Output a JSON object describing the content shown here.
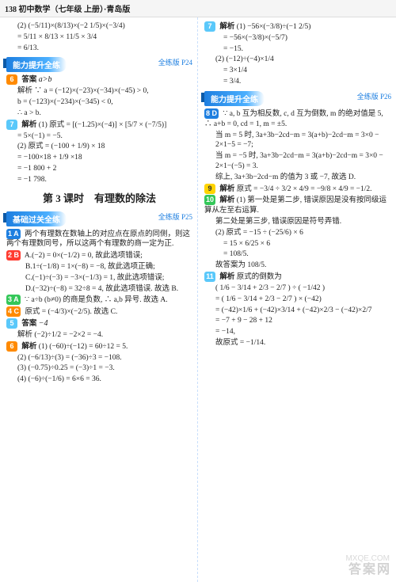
{
  "header": "138 初中数学（七年级 上册）·青岛版",
  "left": {
    "topEq": [
      "(2)  (−5/11)×(8/13)×(−2 1/5)×(−3/4)",
      "= 5/11 × 8/13 × 11/5 × 3/4",
      "= 6/13."
    ],
    "banner1": "能力提升全练",
    "pageref1": "全练版 P24",
    "q6": {
      "num": "6",
      "color": "orange",
      "label": "答案",
      "text": "a>b"
    },
    "q6explain": [
      "解析  ∵ a = (−12)×(−23)×(−34)×(−45) > 0,",
      "b = (−123)×(−234)×(−345) < 0,",
      "∴ a > b."
    ],
    "q7": {
      "num": "7",
      "color": "teal",
      "label": "解析"
    },
    "q7lines": [
      "(1) 原式 = [(−1.25)×(−4)] × [5/7 × (−7/5)]",
      "= 5×(−1) = −5.",
      "(2) 原式 = (−100 + 1/9) × 18",
      "= −100×18 + 1/9 ×18",
      "= −1 800 + 2",
      "= −1 798."
    ],
    "subtitle": "第 3 课时　有理数的除法",
    "banner2": "基础过关全练",
    "pageref2": "全练版 P25",
    "q1": {
      "num": "1 A",
      "color": "blue"
    },
    "q1text": "两个有理数在数轴上的对应点在原点的同侧，则这两个有理数同号，所以这两个有理数的商一定为正.",
    "q2": {
      "num": "2 B",
      "color": "red"
    },
    "q2lines": [
      "A.(−2) = 0×(−1/2) = 0, 故此选项错误;",
      "B.1÷(−1/8) = 1×(−8) = −8, 故此选项正确;",
      "C.(−1)÷(−3) = −3×(−1/3) = 1, 故此选项错误;",
      "D.(−32)÷(−8) = 32÷8 = 4, 故此选项错误. 故选 B."
    ],
    "q3": {
      "num": "3 A",
      "color": "green",
      "text": "∵ a÷b (b≠0) 的商是负数, ∴ a,b 异号. 故选 A."
    },
    "q4": {
      "num": "4 C",
      "color": "orange",
      "text": "原式 = (−4/3)×(−2/5). 故选 C."
    },
    "q5": {
      "num": "5",
      "color": "teal",
      "label": "答案",
      "text": "−4"
    },
    "q5explain": "解析  (−2)÷1/2 = −2×2 = −4.",
    "q6b": {
      "num": "6",
      "color": "orange",
      "label": "解析"
    },
    "q6blines": [
      "(1) (−60)÷(−12) = 60÷12 = 5.",
      "(2) (−6/13)÷(3) = (−36)÷3 = −108.",
      "(3) (−0.75)÷0.25 = (−3)÷1 = −3.",
      "(4) (−6)÷(−1/6) = 6×6 = 36."
    ]
  },
  "right": {
    "q7": {
      "num": "7",
      "color": "teal",
      "label": "解析"
    },
    "q7lines": [
      "(1) −56×(−3/8)÷(−1 2/5)",
      "= −56×(−3/8)×(−5/7)",
      "= −15.",
      "(2) (−12)÷(−4)×1/4",
      "= 3×1/4",
      "= 3/4."
    ],
    "banner": "能力提升全练",
    "pageref": "全练版 P26",
    "q8": {
      "num": "8 D",
      "color": "blue"
    },
    "q8lines": [
      "∵ a, b 互为相反数, c, d 互为倒数, m 的绝对值是 5, ∴ a+b = 0, cd = 1, m = ±5.",
      "当 m = 5 时, 3a+3b−2cd−m = 3(a+b)−2cd−m = 3×0 − 2×1−5 = −7;",
      "当 m = −5 时, 3a+3b−2cd−m = 3(a+b)−2cd−m = 3×0 − 2×1−(−5) = 3.",
      "综上, 3a+3b−2cd−m 的值为 3 或 −7, 故选 D."
    ],
    "q9": {
      "num": "9",
      "color": "yellow",
      "label": "解析",
      "text": "原式 = −3/4 ÷ 3/2 × 4/9 = −9/8 × 4/9 = −1/2."
    },
    "q10": {
      "num": "10",
      "color": "green",
      "label": "解析"
    },
    "q10lines": [
      "(1) 第一处是第二步, 错误原因是没有按同级运算从左至右运算.",
      "第二处是第三步, 错误原因是符号弄错.",
      "(2) 原式 = −15 ÷ (−25/6) × 6",
      "= 15 × 6/25 × 6",
      "= 108/5.",
      "故答案为 108/5."
    ],
    "q11": {
      "num": "11",
      "color": "teal",
      "label": "解析",
      "head": "原式的倒数为"
    },
    "q11lines": [
      "( 1/6 − 3/14 + 2/3 − 2/7 ) ÷ ( −1/42 )",
      "= ( 1/6 − 3/14 + 2/3 − 2/7 ) × (−42)",
      "= (−42)×1/6 + (−42)×3/14 + (−42)×2/3 − (−42)×2/7",
      "= −7 + 9 − 28 + 12",
      "= −14,",
      "故原式 = −1/14."
    ]
  },
  "watermark": "答案网",
  "watermark2": "MXQE.COM"
}
